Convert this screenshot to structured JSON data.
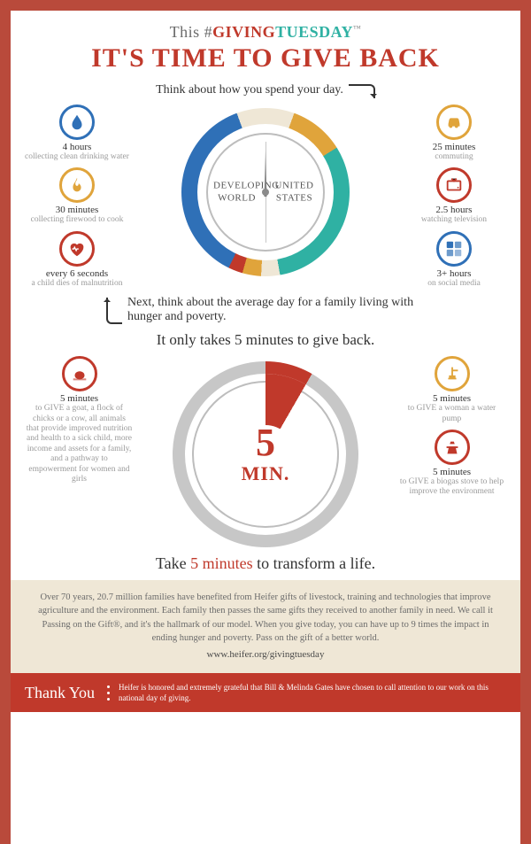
{
  "colors": {
    "frame": "#b94a3b",
    "red": "#c0392b",
    "gold": "#e0a43b",
    "teal": "#2fb1a3",
    "blue": "#2f70b7",
    "cream": "#efe7d6",
    "grey": "#c7c7c7"
  },
  "header": {
    "preline_this": "This ",
    "preline_hash": "#",
    "preline_giving": "GIVING",
    "preline_tuesday": "TUESDAY",
    "tm": "™",
    "title": "IT'S TIME TO GIVE BACK",
    "subtitle": "Think about how you spend your day."
  },
  "clock1": {
    "left_label": "DEVELOPING WORLD",
    "right_label": "UNITED STATES"
  },
  "left_items": [
    {
      "time": "4 hours",
      "desc": "collecting clean drinking water",
      "icon": "drop",
      "color": "#2f70b7"
    },
    {
      "time": "30 minutes",
      "desc": "collecting firewood to cook",
      "icon": "fire",
      "color": "#e0a43b"
    },
    {
      "time": "every 6 seconds",
      "desc": "a child dies of malnutrition",
      "icon": "heart",
      "color": "#c0392b"
    }
  ],
  "right_items": [
    {
      "time": "25 minutes",
      "desc": "commuting",
      "icon": "car",
      "color": "#e0a43b"
    },
    {
      "time": "2.5 hours",
      "desc": "watching television",
      "icon": "tv",
      "color": "#c0392b"
    },
    {
      "time": "3+ hours",
      "desc": "on social media",
      "icon": "social",
      "color": "#2f70b7"
    }
  ],
  "bridge_line": "Next, think about the average day for a family living with hunger and poverty.",
  "midline": "It only takes 5 minutes to give back.",
  "clock2": {
    "big": "5",
    "unit": "MIN."
  },
  "give_left": [
    {
      "time": "5 minutes",
      "desc": "to GIVE a goat, a flock of chicks or a cow, all animals that provide improved nutrition and health to a sick child, more income and assets for a family, and a pathway to empowerment for women and girls",
      "icon": "animal",
      "color": "#c0392b"
    }
  ],
  "give_right": [
    {
      "time": "5 minutes",
      "desc": "to GIVE a woman a water pump",
      "icon": "pump",
      "color": "#e0a43b"
    },
    {
      "time": "5 minutes",
      "desc": "to GIVE a biogas stove to help improve the environment",
      "icon": "stove",
      "color": "#c0392b"
    }
  ],
  "tagline_a": "Take ",
  "tagline_b": "5 minutes",
  "tagline_c": " to transform a life.",
  "blurb": "Over 70 years, 20.7 million families have benefited from Heifer gifts of livestock, training and technologies that improve agriculture and the environment. Each family then passes the same gifts they received to another family in need. We call it Passing on the Gift®, and it's the hallmark of our model. When you give today, you can have up to 9 times the impact in ending hunger and poverty. Pass on the gift of a better world.",
  "url": "www.heifer.org/givingtuesday",
  "thanks_label": "Thank You",
  "thanks_text": "Heifer is honored and extremely grateful that Bill & Melinda Gates have chosen to call attention to our work on this national day of giving."
}
